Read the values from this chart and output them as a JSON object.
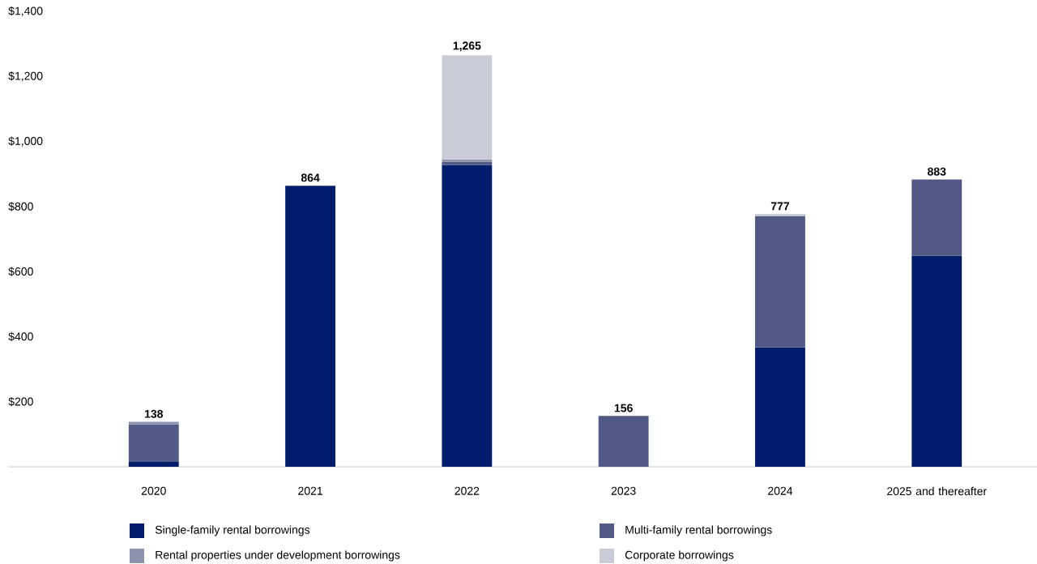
{
  "chart_data": {
    "type": "bar",
    "stacked": true,
    "categories": [
      "2020",
      "2021",
      "2022",
      "2023",
      "2024",
      "2025 and thereafter"
    ],
    "series": [
      {
        "name": "Single-family rental borrowings",
        "color": "#001c6b",
        "values": [
          15,
          864,
          928,
          null,
          367,
          648
        ]
      },
      {
        "name": "Multi-family rental borrowings",
        "color": "#515a87",
        "values": [
          115,
          null,
          10,
          156,
          404,
          235
        ]
      },
      {
        "name": "Rental properties under development borrowings",
        "color": "#8e93ad",
        "values": [
          8,
          null,
          7,
          null,
          null,
          null
        ]
      },
      {
        "name": "Corporate borrowings",
        "color": "#c9ccd6",
        "values": [
          null,
          null,
          320,
          null,
          6,
          null
        ]
      }
    ],
    "ylim": [
      0,
      1400
    ],
    "yticks": [
      {
        "value": 200,
        "label": "$200"
      },
      {
        "value": 400,
        "label": "$400"
      },
      {
        "value": 600,
        "label": "$600"
      },
      {
        "value": 800,
        "label": "$800"
      },
      {
        "value": 1000,
        "label": "$1,000"
      },
      {
        "value": 1200,
        "label": "$1,200"
      },
      {
        "value": 1400,
        "label": "$1,400"
      }
    ],
    "totals": [
      "138",
      "864",
      "1,265",
      "156",
      "777",
      "883"
    ],
    "legend": "bottom"
  }
}
